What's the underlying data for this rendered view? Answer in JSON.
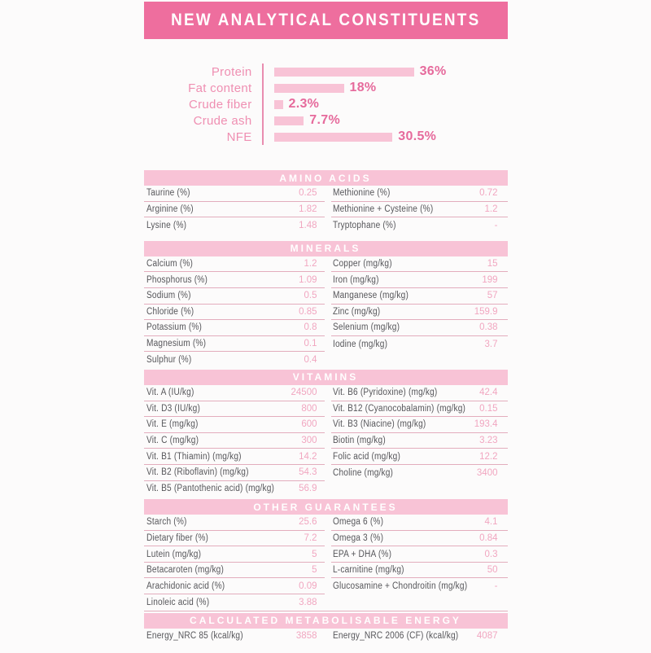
{
  "header": {
    "title": "NEW ANALYTICAL CONSTITUENTS"
  },
  "colors": {
    "header_bg": "#ee6e9e",
    "band_bg": "#f8c3d6",
    "band_text": "#ffffff",
    "bar_fill": "#f8c3d6",
    "bar_label": "#ef8fb2",
    "bar_value": "#e66a9c",
    "axis_line": "#e98db0",
    "label_text": "#56565a",
    "value_text": "#f1a6c0",
    "divider": "#e3adbd"
  },
  "chart_data": {
    "type": "bar",
    "orientation": "horizontal",
    "title": "NEW ANALYTICAL CONSTITUENTS",
    "categories": [
      "Protein",
      "Fat content",
      "Crude fiber",
      "Crude ash",
      "NFE"
    ],
    "values": [
      36,
      18,
      2.3,
      7.7,
      30.5
    ],
    "value_labels": [
      "36%",
      "18%",
      "2.3%",
      "7.7%",
      "30.5%"
    ],
    "unit": "%",
    "xlim": [
      0,
      40
    ],
    "grid": false,
    "legend": false
  },
  "tables": [
    {
      "title": "AMINO ACIDS",
      "left": [
        [
          "Taurine (%)",
          "0.25"
        ],
        [
          "Arginine (%)",
          "1.82"
        ],
        [
          "Lysine (%)",
          "1.48"
        ]
      ],
      "right": [
        [
          "Methionine (%)",
          "0.72"
        ],
        [
          "Methionine + Cysteine (%)",
          "1.2"
        ],
        [
          "Tryptophane (%)",
          "-"
        ]
      ]
    },
    {
      "title": "MINERALS",
      "left": [
        [
          "Calcium (%)",
          "1.2"
        ],
        [
          "Phosphorus (%)",
          "1.09"
        ],
        [
          "Sodium (%)",
          "0.5"
        ],
        [
          "Chloride (%)",
          "0.85"
        ],
        [
          "Potassium (%)",
          "0.8"
        ],
        [
          "Magnesium (%)",
          "0.1"
        ],
        [
          "Sulphur (%)",
          "0.4"
        ]
      ],
      "right": [
        [
          "Copper (mg/kg)",
          "15"
        ],
        [
          "Iron (mg/kg)",
          "199"
        ],
        [
          "Manganese (mg/kg)",
          "57"
        ],
        [
          "Zinc (mg/kg)",
          "159.9"
        ],
        [
          "Selenium (mg/kg)",
          "0.38"
        ],
        [
          "Iodine (mg/kg)",
          "3.7"
        ]
      ]
    },
    {
      "title": "VITAMINS",
      "left": [
        [
          "Vit. A (IU/kg)",
          "24500"
        ],
        [
          "Vit. D3 (IU/kg)",
          "800"
        ],
        [
          "Vit. E (mg/kg)",
          "600"
        ],
        [
          "Vit. C (mg/kg)",
          "300"
        ],
        [
          "Vit. B1 (Thiamin) (mg/kg)",
          "14.2"
        ],
        [
          "Vit. B2 (Riboflavin) (mg/kg)",
          "54.3"
        ],
        [
          "Vit. B5 (Pantothenic acid) (mg/kg)",
          "56.9"
        ]
      ],
      "right": [
        [
          "Vit. B6 (Pyridoxine) (mg/kg)",
          "42.4"
        ],
        [
          "Vit. B12 (Cyanocobalamin) (mg/kg)",
          "0.15"
        ],
        [
          "Vit. B3 (Niacine) (mg/kg)",
          "193.4"
        ],
        [
          "Biotin (mg/kg)",
          "3.23"
        ],
        [
          "Folic acid (mg/kg)",
          "12.2"
        ],
        [
          "Choline (mg/kg)",
          "3400"
        ]
      ]
    },
    {
      "title": "OTHER GUARANTEES",
      "left": [
        [
          "Starch (%)",
          "25.6"
        ],
        [
          "Dietary fiber (%)",
          "7.2"
        ],
        [
          "Lutein (mg/kg)",
          "5"
        ],
        [
          "Betacaroten (mg/kg)",
          "5"
        ],
        [
          "Arachidonic acid (%)",
          "0.09"
        ],
        [
          "Linoleic acid (%)",
          "3.88"
        ]
      ],
      "right": [
        [
          "Omega 6 (%)",
          "4.1"
        ],
        [
          "Omega 3 (%)",
          "0.84"
        ],
        [
          "EPA + DHA (%)",
          "0.3"
        ],
        [
          "L-carnitine (mg/kg)",
          "50"
        ],
        [
          "Glucosamine + Chondroitin (mg/kg)",
          "-"
        ]
      ]
    },
    {
      "title": "CALCULATED METABOLISABLE ENERGY",
      "left": [
        [
          "Energy_NRC 85 (kcal/kg)",
          "3858"
        ]
      ],
      "right": [
        [
          "Energy_NRC 2006 (CF) (kcal/kg)",
          "4087"
        ]
      ]
    }
  ]
}
